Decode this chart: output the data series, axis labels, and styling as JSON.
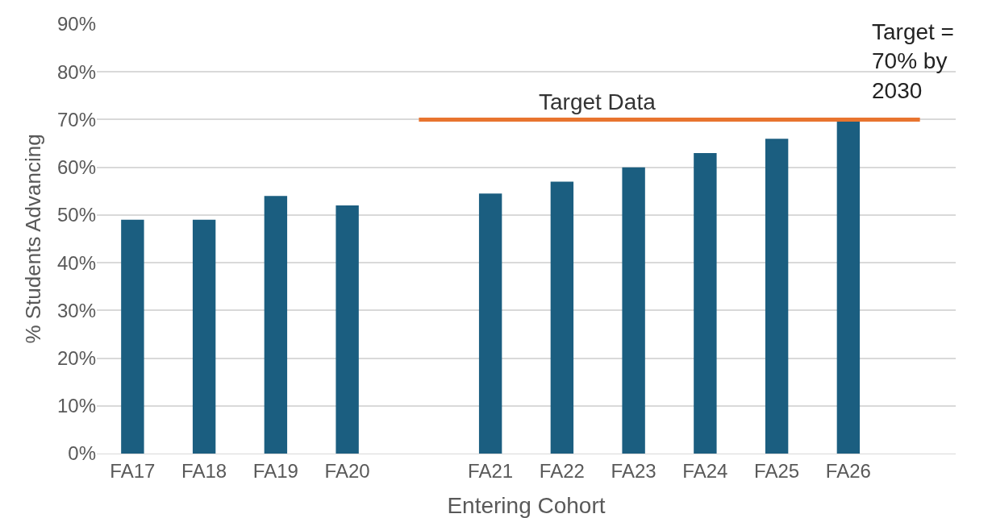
{
  "chart_data": {
    "type": "bar",
    "xlabel": "Entering Cohort",
    "ylabel": "% Students Advancing",
    "categories": [
      "FA17",
      "FA18",
      "FA19",
      "FA20",
      null,
      "FA21",
      "FA22",
      "FA23",
      "FA24",
      "FA25",
      "FA26",
      null
    ],
    "series": [
      {
        "color": "#1b5e80",
        "values": [
          49,
          49,
          54,
          52,
          null,
          54.5,
          57,
          60,
          63,
          66,
          70,
          null
        ]
      },
      {
        "type": "line",
        "name": "Target Data",
        "color": "#e8742f",
        "line_style": "solid",
        "marker": "none",
        "values": [
          null,
          null,
          null,
          null,
          70,
          70,
          70,
          70,
          70,
          70,
          70,
          70
        ]
      }
    ],
    "ylim": [
      0,
      90
    ],
    "yticks": [
      {
        "value": 0,
        "label": "0%"
      },
      {
        "value": 10,
        "label": "10%"
      },
      {
        "value": 20,
        "label": "20%"
      },
      {
        "value": 30,
        "label": "30%"
      },
      {
        "value": 40,
        "label": "40%"
      },
      {
        "value": 50,
        "label": "50%"
      },
      {
        "value": 60,
        "label": "60%"
      },
      {
        "value": 70,
        "label": "70%"
      },
      {
        "value": 80,
        "label": "80%"
      },
      {
        "value": 90,
        "label": "90%"
      }
    ],
    "grid": "y",
    "legend": false,
    "annotations": [
      "Target =\n70% by\n2030"
    ]
  }
}
